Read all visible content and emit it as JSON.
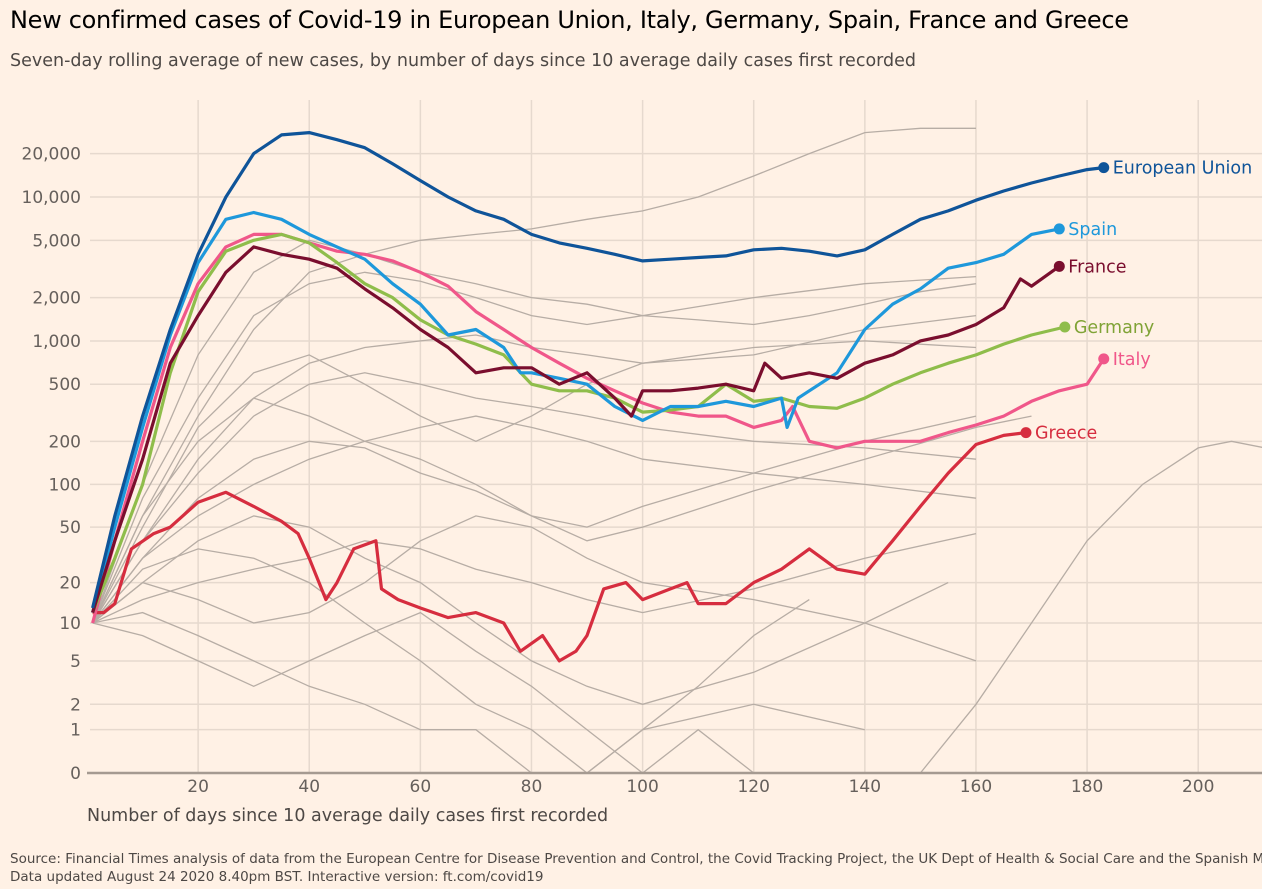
{
  "title": "New confirmed cases of Covid-19 in European Union, Italy, Germany, Spain, France and Greece",
  "subtitle": "Seven-day rolling average of new cases, by number of days since 10 average daily cases first recorded",
  "source_line1": "Source: Financial Times analysis of data from the European Centre for Disease Prevention and Control, the Covid Tracking Project, the UK Dept of Health & Social Care and the Spanish Mini",
  "source_line2": "Data updated August 24 2020 8.40pm BST. Interactive version: ft.com/covid19",
  "chart_data": {
    "type": "line",
    "title": "New confirmed cases of Covid-19 in European Union, Italy, Germany, Spain, France and Greece",
    "xlabel": "Number of days since 10 average daily cases first recorded",
    "ylabel": "",
    "y_scale": "log(1+x)",
    "xlim": [
      0,
      212
    ],
    "ylim": [
      0,
      30000
    ],
    "x_ticks": [
      20,
      40,
      60,
      80,
      100,
      120,
      140,
      160,
      180,
      200
    ],
    "y_ticks": [
      0,
      1,
      2,
      5,
      10,
      20,
      50,
      100,
      200,
      500,
      1000,
      2000,
      5000,
      10000,
      20000
    ],
    "y_tick_labels": [
      "0",
      "1",
      "2",
      "5",
      "10",
      "20",
      "50",
      "100",
      "200",
      "500",
      "1,000",
      "2,000",
      "5,000",
      "10,000",
      "20,000"
    ],
    "grid": true,
    "legend": "direct labels at line ends",
    "background_color": "#fff1e5",
    "series": [
      {
        "name": "Greece",
        "color": "#d62d3f",
        "label_color": "#d62d3f",
        "x": [
          1,
          3,
          5,
          8,
          12,
          15,
          20,
          25,
          30,
          35,
          38,
          40,
          43,
          45,
          48,
          52,
          53,
          56,
          60,
          65,
          70,
          75,
          78,
          82,
          85,
          88,
          90,
          93,
          97,
          100,
          105,
          108,
          110,
          115,
          120,
          125,
          130,
          135,
          140,
          145,
          150,
          155,
          160,
          165,
          169
        ],
        "y": [
          12,
          12,
          14,
          35,
          45,
          50,
          75,
          88,
          70,
          55,
          45,
          30,
          15,
          20,
          35,
          40,
          18,
          15,
          13,
          11,
          12,
          10,
          6,
          8,
          5,
          6,
          8,
          18,
          20,
          15,
          18,
          20,
          14,
          14,
          20,
          25,
          35,
          25,
          23,
          40,
          70,
          120,
          190,
          220,
          230
        ]
      },
      {
        "name": "Italy",
        "color": "#f0578a",
        "label_color": "#f0578a",
        "x": [
          1,
          5,
          10,
          15,
          20,
          25,
          30,
          35,
          40,
          45,
          50,
          55,
          60,
          65,
          70,
          75,
          80,
          85,
          90,
          95,
          100,
          105,
          110,
          115,
          120,
          125,
          127,
          130,
          135,
          140,
          145,
          150,
          155,
          160,
          165,
          170,
          175,
          180,
          183
        ],
        "y": [
          10,
          40,
          200,
          900,
          2500,
          4500,
          5500,
          5500,
          4800,
          4200,
          4000,
          3600,
          3000,
          2400,
          1600,
          1200,
          900,
          700,
          550,
          450,
          370,
          320,
          300,
          300,
          250,
          280,
          350,
          200,
          180,
          200,
          200,
          200,
          230,
          260,
          300,
          380,
          450,
          500,
          750
        ]
      },
      {
        "name": "Germany",
        "color": "#8fbd4b",
        "label_color": "#80a336",
        "x": [
          1,
          5,
          10,
          15,
          20,
          25,
          30,
          35,
          40,
          45,
          50,
          55,
          60,
          65,
          70,
          75,
          80,
          85,
          90,
          95,
          100,
          105,
          110,
          115,
          120,
          125,
          130,
          135,
          140,
          145,
          150,
          155,
          160,
          165,
          170,
          176
        ],
        "y": [
          12,
          30,
          100,
          600,
          2200,
          4200,
          5000,
          5500,
          4800,
          3500,
          2500,
          2000,
          1400,
          1100,
          950,
          800,
          500,
          450,
          450,
          400,
          320,
          330,
          350,
          500,
          380,
          400,
          350,
          340,
          400,
          500,
          600,
          700,
          800,
          950,
          1100,
          1250
        ]
      },
      {
        "name": "Spain",
        "color": "#1e98db",
        "label_color": "#1e98db",
        "x": [
          1,
          5,
          10,
          15,
          20,
          25,
          30,
          35,
          40,
          45,
          50,
          55,
          60,
          65,
          70,
          75,
          78,
          80,
          85,
          90,
          95,
          100,
          105,
          110,
          115,
          120,
          125,
          126,
          128,
          130,
          135,
          140,
          145,
          150,
          155,
          160,
          165,
          170,
          175
        ],
        "y": [
          12,
          50,
          250,
          1100,
          3500,
          7000,
          7800,
          7000,
          5500,
          4500,
          3700,
          2500,
          1800,
          1100,
          1200,
          900,
          600,
          600,
          550,
          500,
          350,
          280,
          350,
          350,
          380,
          350,
          400,
          250,
          400,
          450,
          600,
          1200,
          1800,
          2300,
          3200,
          3500,
          4000,
          5500,
          6000
        ]
      },
      {
        "name": "France",
        "color": "#7a0e2e",
        "label_color": "#7a0e2e",
        "x": [
          1,
          5,
          10,
          15,
          20,
          25,
          30,
          35,
          40,
          45,
          50,
          55,
          60,
          65,
          70,
          75,
          80,
          85,
          90,
          95,
          98,
          100,
          105,
          110,
          115,
          120,
          122,
          125,
          130,
          135,
          140,
          145,
          150,
          155,
          160,
          165,
          168,
          170,
          175
        ],
        "y": [
          12,
          40,
          150,
          700,
          1500,
          3000,
          4500,
          4000,
          3700,
          3200,
          2300,
          1700,
          1200,
          900,
          600,
          650,
          650,
          500,
          600,
          400,
          300,
          450,
          450,
          470,
          500,
          450,
          700,
          550,
          600,
          550,
          700,
          800,
          1000,
          1100,
          1300,
          1700,
          2700,
          2400,
          3300
        ]
      },
      {
        "name": "European Union",
        "color": "#0f5499",
        "label_color": "#0f5499",
        "x": [
          1,
          5,
          10,
          15,
          20,
          25,
          30,
          35,
          40,
          45,
          50,
          55,
          60,
          65,
          70,
          75,
          80,
          85,
          90,
          95,
          100,
          105,
          110,
          115,
          120,
          125,
          130,
          135,
          140,
          145,
          150,
          155,
          160,
          165,
          170,
          175,
          180,
          183
        ],
        "y": [
          13,
          60,
          300,
          1200,
          4000,
          10000,
          20000,
          27000,
          28000,
          25000,
          22000,
          17000,
          13000,
          10000,
          8000,
          7000,
          5500,
          4800,
          4400,
          4000,
          3600,
          3700,
          3800,
          3900,
          4300,
          4400,
          4200,
          3900,
          4300,
          5500,
          7000,
          8000,
          9500,
          11000,
          12500,
          14000,
          15500,
          16000
        ]
      }
    ],
    "other_countries": [
      {
        "x": [
          1,
          10,
          20,
          30,
          40,
          50,
          60,
          70,
          80,
          90,
          100,
          110,
          120,
          130,
          140,
          150,
          160
        ],
        "y": [
          10,
          60,
          300,
          1200,
          3000,
          4000,
          5000,
          5500,
          6000,
          7000,
          8000,
          10000,
          14000,
          20000,
          28000,
          30000,
          30000
        ]
      },
      {
        "x": [
          1,
          10,
          20,
          30,
          40,
          50,
          60,
          70,
          80,
          90,
          100,
          110,
          120,
          130,
          140,
          150,
          160
        ],
        "y": [
          10,
          100,
          800,
          3000,
          5000,
          4000,
          3000,
          2500,
          2000,
          1800,
          1500,
          1400,
          1300,
          1500,
          1800,
          2200,
          2500
        ]
      },
      {
        "x": [
          1,
          10,
          20,
          30,
          40,
          50,
          60,
          70,
          80,
          90,
          100,
          120,
          140,
          160
        ],
        "y": [
          10,
          40,
          150,
          400,
          700,
          900,
          1000,
          1100,
          900,
          800,
          700,
          800,
          1200,
          1500
        ]
      },
      {
        "x": [
          1,
          10,
          20,
          30,
          40,
          50,
          60,
          70,
          80,
          90,
          100,
          120,
          140,
          160
        ],
        "y": [
          10,
          30,
          80,
          150,
          200,
          180,
          120,
          90,
          60,
          50,
          70,
          120,
          200,
          300
        ]
      },
      {
        "x": [
          1,
          10,
          20,
          30,
          40,
          50,
          60,
          70,
          80,
          90,
          100,
          120,
          140,
          155
        ],
        "y": [
          10,
          20,
          40,
          60,
          50,
          30,
          20,
          10,
          5,
          3,
          2,
          4,
          10,
          20
        ]
      },
      {
        "x": [
          1,
          10,
          20,
          30,
          40,
          50,
          60,
          70,
          80,
          90,
          100,
          110,
          120,
          130
        ],
        "y": [
          10,
          25,
          35,
          30,
          20,
          10,
          5,
          2,
          1,
          0,
          1,
          3,
          8,
          15
        ]
      },
      {
        "x": [
          1,
          10,
          20,
          30,
          40,
          50,
          60,
          70,
          80,
          90,
          100,
          120,
          140,
          160
        ],
        "y": [
          10,
          50,
          250,
          600,
          800,
          500,
          300,
          200,
          300,
          500,
          700,
          900,
          1000,
          900
        ]
      },
      {
        "x": [
          1,
          10,
          20,
          30,
          40,
          50,
          60,
          70,
          80,
          90,
          100,
          120,
          140,
          160
        ],
        "y": [
          10,
          15,
          20,
          25,
          30,
          40,
          35,
          25,
          20,
          15,
          12,
          18,
          30,
          45
        ]
      },
      {
        "x": [
          1,
          10,
          20,
          30,
          40,
          50,
          60,
          70,
          80,
          90,
          100,
          120,
          140
        ],
        "y": [
          10,
          12,
          8,
          5,
          3,
          2,
          1,
          1,
          0,
          0,
          1,
          2,
          1
        ]
      },
      {
        "x": [
          1,
          10,
          20,
          30,
          40,
          50,
          60,
          70,
          80,
          90,
          100,
          120,
          140,
          160
        ],
        "y": [
          10,
          80,
          400,
          1500,
          2500,
          3000,
          2600,
          2000,
          1500,
          1300,
          1500,
          2000,
          2500,
          2800
        ]
      },
      {
        "x": [
          1,
          10,
          20,
          30,
          40,
          50,
          60,
          70,
          80,
          90,
          100,
          120,
          140,
          160
        ],
        "y": [
          10,
          30,
          60,
          100,
          150,
          200,
          250,
          300,
          250,
          200,
          150,
          120,
          100,
          80
        ]
      },
      {
        "x": [
          1,
          10,
          20,
          30,
          40,
          50,
          60,
          70,
          80,
          90,
          100,
          120,
          140,
          160
        ],
        "y": [
          10,
          20,
          15,
          10,
          12,
          20,
          40,
          60,
          50,
          30,
          20,
          15,
          10,
          5
        ]
      },
      {
        "x": [
          150,
          160,
          170,
          180,
          190,
          200,
          206,
          212
        ],
        "y": [
          0,
          2,
          10,
          40,
          100,
          180,
          200,
          180
        ]
      },
      {
        "x": [
          1,
          10,
          20,
          30,
          40,
          50,
          60,
          70,
          80,
          90,
          100,
          120,
          140,
          160
        ],
        "y": [
          10,
          40,
          120,
          300,
          500,
          600,
          500,
          400,
          350,
          300,
          250,
          200,
          180,
          150
        ]
      },
      {
        "x": [
          1,
          10,
          20,
          30,
          40,
          50,
          60,
          70,
          80,
          90,
          100,
          110,
          120
        ],
        "y": [
          10,
          8,
          5,
          3,
          5,
          8,
          12,
          6,
          3,
          1,
          0,
          1,
          0
        ]
      },
      {
        "x": [
          1,
          10,
          20,
          30,
          40,
          50,
          60,
          70,
          80,
          90,
          100,
          120,
          140,
          160,
          170
        ],
        "y": [
          10,
          60,
          200,
          400,
          300,
          200,
          150,
          100,
          60,
          40,
          50,
          90,
          150,
          250,
          300
        ]
      }
    ],
    "other_color": "#b7ada5"
  }
}
